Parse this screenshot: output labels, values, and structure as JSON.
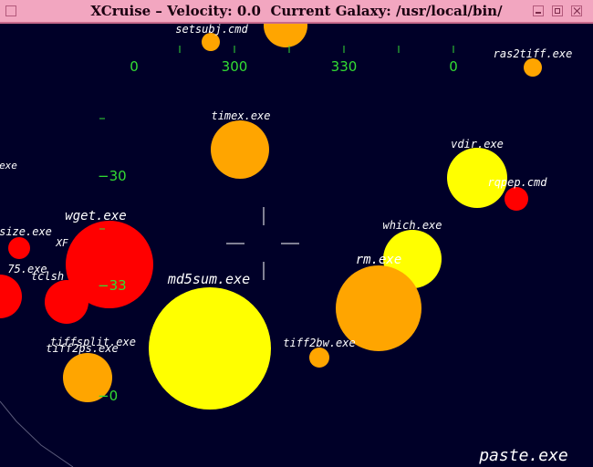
{
  "window": {
    "title": "XCruise – Velocity: 0.0  Current Galaxy: /usr/local/bin/",
    "buttons": [
      "window-menu-icon",
      "minimize-icon",
      "maximize-icon",
      "close-icon"
    ]
  },
  "heading_scale": {
    "labels": [
      "0",
      "300",
      "330",
      "0"
    ]
  },
  "pitch_scale": {
    "labels": [
      "−30",
      "−33",
      "−0"
    ]
  },
  "colors": {
    "background": "#000028",
    "titlebar": "#f2a6c0",
    "hud_green": "#33dd33",
    "star_yellow": "#ffff00",
    "star_orange": "#ffa500",
    "star_red": "#ff0000"
  },
  "files": [
    {
      "name": "setsubj.cmd",
      "color": "orange"
    },
    {
      "name": "ras2tiff.exe",
      "color": "orange"
    },
    {
      "name": "timex.exe",
      "color": "orange"
    },
    {
      "name": "vdir.exe",
      "color": "yellow"
    },
    {
      "name": "rqpep.cmd",
      "color": "red"
    },
    {
      "name": "which.exe",
      "color": "yellow"
    },
    {
      "name": "wget.exe",
      "color": "red"
    },
    {
      "name": "rm.exe",
      "color": "orange"
    },
    {
      "name": "md5sum.exe",
      "color": "yellow"
    },
    {
      "name": "tiff2bw.exe",
      "color": "orange"
    },
    {
      "name": "tiffsplit.exe",
      "color": "orange"
    },
    {
      "name": "tiff2ps.exe",
      "color": "orange"
    },
    {
      "name": "size.exe",
      "color": "red"
    },
    {
      "name": "tclsh",
      "color": "red"
    },
    {
      "name": "XF",
      "color": "red"
    },
    {
      "name": "75.exe",
      "color": "red"
    },
    {
      "name": "exe",
      "color": "none"
    },
    {
      "name": "paste.exe",
      "color": "none"
    }
  ]
}
